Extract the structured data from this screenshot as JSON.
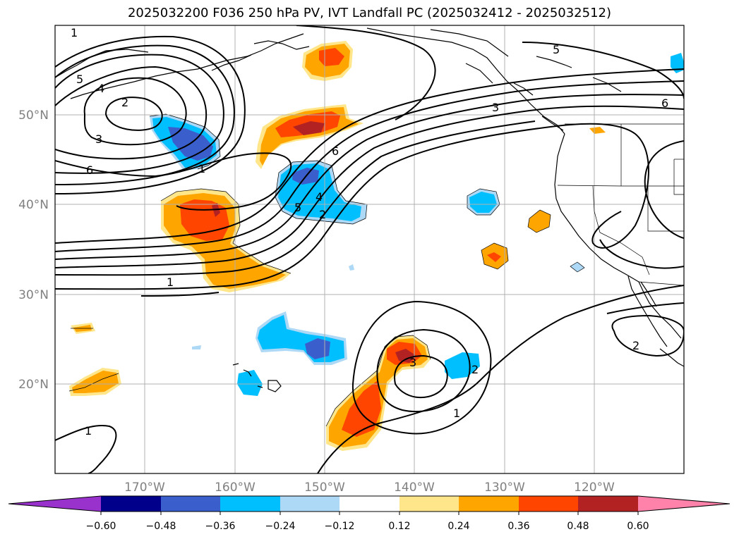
{
  "title": "2025032200 F036 250 hPa PV, IVT Landfall PC (2025032412 - 2025032512)",
  "map": {
    "projection": "PlateCarree",
    "lon_range": [
      -180,
      -110
    ],
    "lat_range": [
      10,
      60
    ],
    "grid": true,
    "lat_ticks": [
      "20°N",
      "30°N",
      "40°N",
      "50°N"
    ],
    "lon_ticks": [
      "170°W",
      "160°W",
      "150°W",
      "140°W",
      "130°W",
      "120°W"
    ],
    "contour_labels": [
      "1",
      "2",
      "3",
      "4",
      "5",
      "6",
      "1",
      "2",
      "3",
      "4",
      "5",
      "6",
      "1",
      "2",
      "3",
      "1",
      "2",
      "1",
      "5",
      "6",
      "2"
    ]
  },
  "colorbar": {
    "extend": "both",
    "ticks": [
      "−0.60",
      "−0.48",
      "−0.36",
      "−0.24",
      "−0.12",
      "0.12",
      "0.24",
      "0.36",
      "0.48",
      "0.60"
    ],
    "colors": [
      "#9932CC",
      "#00008B",
      "#3A5FCD",
      "#00BFFF",
      "#ADD8F6",
      "#FFFFFF",
      "#FFE68A",
      "#FFA500",
      "#FF4500",
      "#B22222",
      "#FF82AB"
    ]
  }
}
